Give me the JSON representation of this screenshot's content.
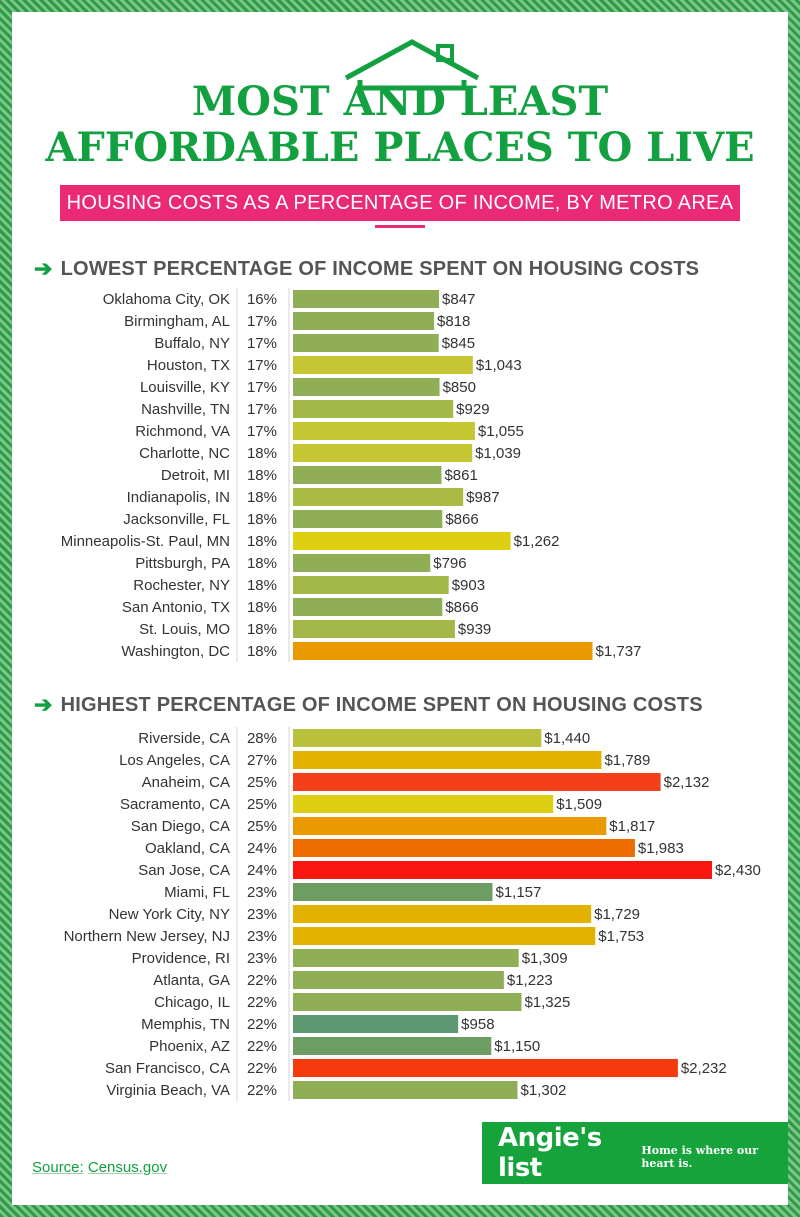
{
  "title_line1": "MOST AND LEAST",
  "title_line2": "AFFORDABLE PLACES TO LIVE",
  "subtitle": "HOUSING COSTS AS A PERCENTAGE OF INCOME, BY METRO AREA",
  "source_label": "Source:",
  "source_value": "Census.gov",
  "brand_name": "Angie's list",
  "brand_tagline": "Home is where our heart is.",
  "colors": {
    "title_green": "#12a041",
    "accent_pink": "#ea2a75",
    "brand_green": "#16a33c"
  },
  "chart_data": [
    {
      "type": "bar",
      "title": "LOWEST PERCENTAGE OF INCOME SPENT ON HOUSING COSTS",
      "orientation": "horizontal",
      "value_unit": "$",
      "xlim": [
        0,
        2430
      ],
      "rows": [
        {
          "label": "Oklahoma City, OK",
          "pct": "16%",
          "value": 847,
          "value_label": "$847",
          "color": "#8fae55"
        },
        {
          "label": "Birmingham, AL",
          "pct": "17%",
          "value": 818,
          "value_label": "$818",
          "color": "#8fae55"
        },
        {
          "label": "Buffalo, NY",
          "pct": "17%",
          "value": 845,
          "value_label": "$845",
          "color": "#8fae55"
        },
        {
          "label": "Houston, TX",
          "pct": "17%",
          "value": 1043,
          "value_label": "$1,043",
          "color": "#c6c533"
        },
        {
          "label": "Louisville, KY",
          "pct": "17%",
          "value": 850,
          "value_label": "$850",
          "color": "#8fae55"
        },
        {
          "label": "Nashville, TN",
          "pct": "17%",
          "value": 929,
          "value_label": "$929",
          "color": "#a3b848"
        },
        {
          "label": "Richmond, VA",
          "pct": "17%",
          "value": 1055,
          "value_label": "$1,055",
          "color": "#c6c533"
        },
        {
          "label": "Charlotte, NC",
          "pct": "18%",
          "value": 1039,
          "value_label": "$1,039",
          "color": "#c6c533"
        },
        {
          "label": "Detroit, MI",
          "pct": "18%",
          "value": 861,
          "value_label": "$861",
          "color": "#8fae55"
        },
        {
          "label": "Indianapolis, IN",
          "pct": "18%",
          "value": 987,
          "value_label": "$987",
          "color": "#abbc45"
        },
        {
          "label": "Jacksonville, FL",
          "pct": "18%",
          "value": 866,
          "value_label": "$866",
          "color": "#8fae55"
        },
        {
          "label": "Minneapolis-St. Paul, MN",
          "pct": "18%",
          "value": 1262,
          "value_label": "$1,262",
          "color": "#dfcf12"
        },
        {
          "label": "Pittsburgh, PA",
          "pct": "18%",
          "value": 796,
          "value_label": "$796",
          "color": "#8fae55"
        },
        {
          "label": "Rochester, NY",
          "pct": "18%",
          "value": 903,
          "value_label": "$903",
          "color": "#a3b848"
        },
        {
          "label": "San Antonio, TX",
          "pct": "18%",
          "value": 866,
          "value_label": "$866",
          "color": "#8fae55"
        },
        {
          "label": "St. Louis, MO",
          "pct": "18%",
          "value": 939,
          "value_label": "$939",
          "color": "#a3b848"
        },
        {
          "label": "Washington, DC",
          "pct": "18%",
          "value": 1737,
          "value_label": "$1,737",
          "color": "#ea9a00"
        }
      ]
    },
    {
      "type": "bar",
      "title": "HIGHEST PERCENTAGE OF INCOME SPENT ON HOUSING COSTS",
      "orientation": "horizontal",
      "value_unit": "$",
      "xlim": [
        0,
        2430
      ],
      "rows": [
        {
          "label": "Riverside, CA",
          "pct": "28%",
          "value": 1440,
          "value_label": "$1,440",
          "color": "#b8c03c"
        },
        {
          "label": "Los Angeles, CA",
          "pct": "27%",
          "value": 1789,
          "value_label": "$1,789",
          "color": "#e3b200"
        },
        {
          "label": "Anaheim, CA",
          "pct": "25%",
          "value": 2132,
          "value_label": "$2,132",
          "color": "#f4401a"
        },
        {
          "label": "Sacramento, CA",
          "pct": "25%",
          "value": 1509,
          "value_label": "$1,509",
          "color": "#dfcf12"
        },
        {
          "label": "San Diego, CA",
          "pct": "25%",
          "value": 1817,
          "value_label": "$1,817",
          "color": "#ea9a00"
        },
        {
          "label": "Oakland, CA",
          "pct": "24%",
          "value": 1983,
          "value_label": "$1,983",
          "color": "#ef6d00"
        },
        {
          "label": "San Jose, CA",
          "pct": "24%",
          "value": 2430,
          "value_label": "$2,430",
          "color": "#f8160f"
        },
        {
          "label": "Miami, FL",
          "pct": "23%",
          "value": 1157,
          "value_label": "$1,157",
          "color": "#6e9d63"
        },
        {
          "label": "New York City, NY",
          "pct": "23%",
          "value": 1729,
          "value_label": "$1,729",
          "color": "#e3b200"
        },
        {
          "label": "Northern New Jersey, NJ",
          "pct": "23%",
          "value": 1753,
          "value_label": "$1,753",
          "color": "#e3b200"
        },
        {
          "label": "Providence, RI",
          "pct": "23%",
          "value": 1309,
          "value_label": "$1,309",
          "color": "#8fae55"
        },
        {
          "label": "Atlanta, GA",
          "pct": "22%",
          "value": 1223,
          "value_label": "$1,223",
          "color": "#8fae55"
        },
        {
          "label": "Chicago, IL",
          "pct": "22%",
          "value": 1325,
          "value_label": "$1,325",
          "color": "#8fae55"
        },
        {
          "label": "Memphis, TN",
          "pct": "22%",
          "value": 958,
          "value_label": "$958",
          "color": "#5e9870"
        },
        {
          "label": "Phoenix, AZ",
          "pct": "22%",
          "value": 1150,
          "value_label": "$1,150",
          "color": "#6e9d63"
        },
        {
          "label": "San Francisco, CA",
          "pct": "22%",
          "value": 2232,
          "value_label": "$2,232",
          "color": "#f53a0e"
        },
        {
          "label": "Virginia Beach, VA",
          "pct": "22%",
          "value": 1302,
          "value_label": "$1,302",
          "color": "#8fae55"
        }
      ]
    }
  ]
}
